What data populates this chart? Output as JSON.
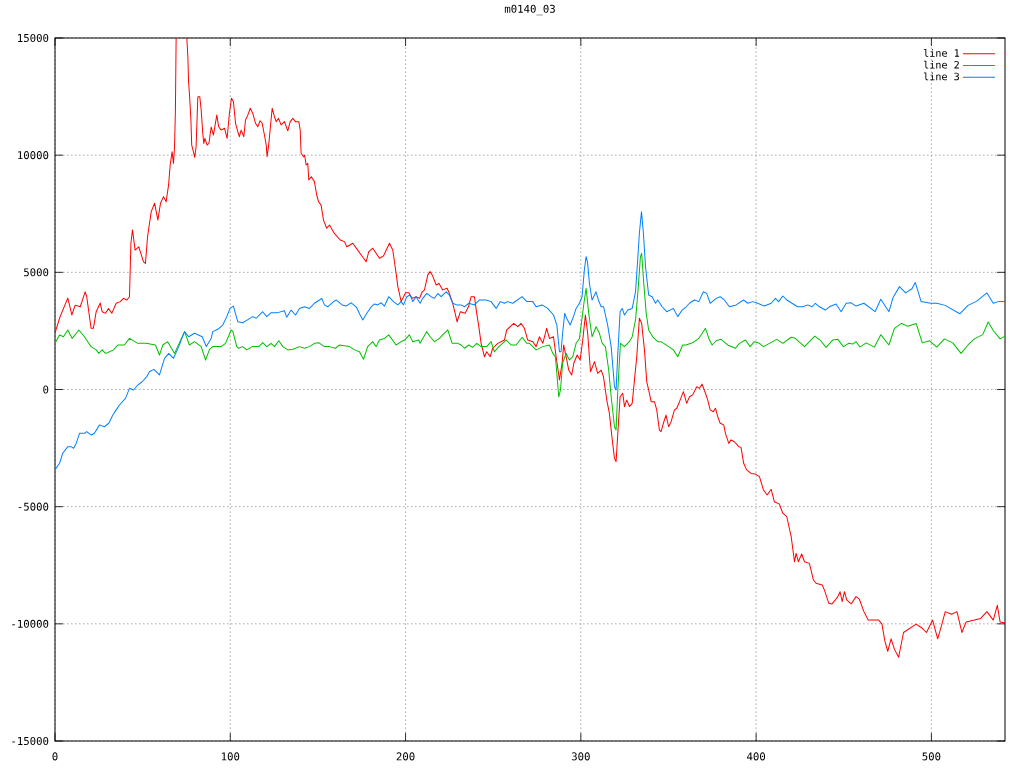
{
  "chart_data": {
    "type": "line",
    "title": "m0140_03",
    "xlim": [
      0,
      542
    ],
    "ylim": [
      -15000,
      15000
    ],
    "xticks": [
      0,
      100,
      200,
      300,
      400,
      500
    ],
    "yticks": [
      -15000,
      -10000,
      -5000,
      0,
      5000,
      10000,
      15000
    ],
    "grid": true,
    "legend": "top right",
    "series": [
      {
        "name": "line 1",
        "color": "#ff0000",
        "x": [
          0,
          2.6,
          7.3,
          9.6,
          11.5,
          14.4,
          17.2,
          18.1,
          20.6,
          21.9,
          23.5,
          25.8,
          26.9,
          28.8,
          30.5,
          32.4,
          34.9,
          37.2,
          39.1,
          41,
          42.5,
          43.3,
          44.2,
          45.7,
          47.8,
          50.5,
          51.6,
          52.8,
          54.9,
          56.8,
          58.7,
          60.2,
          61.9,
          63.4,
          64.8,
          65.7,
          66.8,
          67.6,
          68.2,
          68.7,
          69.1,
          72,
          75.2,
          75.8,
          76.2,
          76.8,
          77.5,
          78,
          79.2,
          79.7,
          80.5,
          81.5,
          82.6,
          83.4,
          84.3,
          84.9,
          85.5,
          86.8,
          87.8,
          89.1,
          90.4,
          92.3,
          93.4,
          94.8,
          96.7,
          98.2,
          99.5,
          100.7,
          101.8,
          103,
          104.3,
          105.2,
          106.2,
          107.7,
          108.7,
          110,
          111.4,
          112.8,
          114.4,
          115.7,
          117,
          118.2,
          119.5,
          120.5,
          121,
          121.9,
          122.9,
          123.9,
          125.2,
          126.2,
          127.5,
          129,
          130.9,
          132.8,
          134.2,
          135.7,
          137.2,
          139.1,
          139.9,
          140.4,
          141.8,
          142.4,
          143.3,
          144.2,
          144.8,
          146.2,
          148,
          149.3,
          150.4,
          151.8,
          153.2,
          155,
          156.6,
          159.4,
          162.7,
          165.1,
          166.5,
          169.9,
          172.4,
          174.7,
          177.5,
          179,
          181.3,
          185.1,
          187.4,
          190.8,
          192.7,
          194.6,
          195.6,
          197.5,
          200,
          201.8,
          203.8,
          206,
          208,
          209.5,
          210.8,
          212.7,
          214,
          215.2,
          217.5,
          219,
          221.2,
          223.7,
          225,
          226.9,
          228.3,
          229.4,
          231.3,
          234,
          235.9,
          237.4,
          239.3,
          240.6,
          241.8,
          243.1,
          245,
          246.3,
          248.3,
          249.7,
          252.6,
          256.4,
          257.7,
          261.7,
          264,
          265.9,
          267.8,
          269.7,
          272.6,
          274.5,
          276.4,
          278.3,
          280.5,
          282.1,
          284.4,
          285.9,
          287.8,
          289.3,
          290.2,
          291.6,
          293.1,
          294.8,
          296,
          297.9,
          299.6,
          301.1,
          302.6,
          303.9,
          305.5,
          307.8,
          309.6,
          311.6,
          312.9,
          314.8,
          316.3,
          317.5,
          319.2,
          320.1,
          321.1,
          322.4,
          323.9,
          324.9,
          326.2,
          327.7,
          329.3,
          330.6,
          331.9,
          333.4,
          334.7,
          336.3,
          337.6,
          338.7,
          340.1,
          342,
          343.3,
          344.8,
          345.8,
          347.1,
          348.6,
          350.1,
          351.5,
          353.4,
          354.7,
          356.3,
          358.5,
          360.4,
          362,
          363.8,
          366.1,
          367.7,
          369.2,
          371.1,
          372.4,
          373.8,
          375.6,
          376.8,
          378.1,
          379.5,
          381.5,
          382.5,
          384.4,
          385.7,
          387.6,
          390.1,
          391.4,
          392.9,
          394.6,
          397.1,
          399.6,
          401.9,
          404.2,
          406.3,
          408.6,
          410.4,
          413.3,
          415.2,
          417.5,
          420,
          421.9,
          422.8,
          424.1,
          426,
          427.6,
          430.4,
          432.7,
          434.2,
          437.7,
          439,
          441.4,
          443.3,
          445.2,
          446.6,
          447.9,
          449.1,
          450.4,
          451.7,
          454.2,
          457,
          458.9,
          461.5,
          463.9,
          469.9,
          471.8,
          473.4,
          475.1,
          477,
          478.9,
          481.3,
          484.1,
          487.7,
          491.3,
          494.8,
          497.2,
          500.7,
          503.6,
          506,
          507.9,
          511.5,
          514.6,
          517.4,
          519.8,
          524.5,
          528.1,
          531.7,
          535.3,
          537.6,
          539.2,
          542
        ],
        "values": [
          2410,
          3050,
          3900,
          3180,
          3600,
          3530,
          4170,
          3960,
          2610,
          2610,
          3320,
          3690,
          3320,
          3250,
          3460,
          3250,
          3680,
          3750,
          3890,
          3820,
          3960,
          6240,
          6810,
          5950,
          6090,
          5450,
          5380,
          6520,
          7590,
          7950,
          7230,
          7950,
          8230,
          8010,
          8730,
          9580,
          10150,
          9650,
          10360,
          11930,
          15000,
          null,
          15000,
          14200,
          13130,
          12490,
          11570,
          10430,
          10080,
          9910,
          10360,
          12490,
          12490,
          11930,
          10930,
          10500,
          10720,
          10430,
          10500,
          11200,
          10860,
          11710,
          11210,
          11070,
          11150,
          10720,
          11790,
          12430,
          12280,
          11360,
          11000,
          10790,
          11070,
          10790,
          11500,
          11710,
          12000,
          11790,
          11360,
          11210,
          11470,
          11360,
          10860,
          10430,
          9930,
          10430,
          11210,
          12000,
          11640,
          11430,
          11570,
          11290,
          11430,
          11040,
          11430,
          11570,
          11430,
          11430,
          11070,
          10080,
          9930,
          10000,
          9580,
          9650,
          8940,
          9080,
          8870,
          8300,
          8010,
          7870,
          7230,
          6880,
          7020,
          6660,
          6380,
          6310,
          6090,
          6240,
          5980,
          5740,
          5450,
          5880,
          6030,
          5600,
          5700,
          6240,
          5950,
          4960,
          4390,
          3750,
          4130,
          4130,
          3890,
          3960,
          3890,
          4170,
          4250,
          4890,
          5030,
          4890,
          4460,
          4530,
          4250,
          4320,
          4100,
          3680,
          3250,
          2890,
          3320,
          3250,
          3530,
          3960,
          3960,
          3250,
          2680,
          1970,
          1400,
          1610,
          1400,
          1760,
          1970,
          2110,
          2540,
          2820,
          2680,
          2820,
          2610,
          2110,
          2040,
          1830,
          2250,
          1970,
          2610,
          2180,
          2250,
          1400,
          410,
          1120,
          1900,
          1400,
          830,
          620,
          1120,
          1470,
          1260,
          2110,
          3180,
          2400,
          760,
          1190,
          690,
          830,
          550,
          -450,
          -1020,
          -1870,
          -2940,
          -3080,
          -1870,
          -310,
          -160,
          -730,
          -450,
          -730,
          -590,
          410,
          1400,
          3040,
          2820,
          1690,
          330,
          -20,
          -520,
          -520,
          -870,
          -1730,
          -1800,
          -1440,
          -1090,
          -1590,
          -1370,
          -870,
          -800,
          -520,
          -90,
          -590,
          -310,
          -230,
          120,
          50,
          230,
          -160,
          -450,
          -870,
          -950,
          -800,
          -1160,
          -1440,
          -1510,
          -1870,
          -2300,
          -2150,
          -2230,
          -2440,
          -2470,
          -3150,
          -3430,
          -3580,
          -3610,
          -3720,
          -4290,
          -4500,
          -4260,
          -4790,
          -4890,
          -5280,
          -5430,
          -6280,
          -7350,
          -6990,
          -7350,
          -7020,
          -7350,
          -7420,
          -8130,
          -8270,
          -8340,
          -8560,
          -9120,
          -9150,
          -8980,
          -8840,
          -8630,
          -9050,
          -8630,
          -8980,
          -9150,
          -8840,
          -8950,
          -9480,
          -9840,
          -9840,
          -10010,
          -10720,
          -11170,
          -10640,
          -11080,
          -11430,
          -10370,
          -10190,
          -10010,
          -10190,
          -10370,
          -9840,
          -10640,
          -10010,
          -9480,
          -9590,
          -9480,
          -10370,
          -9920,
          -9840,
          -9770,
          -9480,
          -9840,
          -9210,
          -9920,
          -9960
        ]
      },
      {
        "name": "line 2",
        "color": "#00c000",
        "x": [
          0,
          2.6,
          4.8,
          7.3,
          9.8,
          13.6,
          16.8,
          18.7,
          20.6,
          23.5,
          25,
          26.9,
          28.8,
          31.1,
          33.4,
          35.8,
          39.6,
          42.5,
          47.2,
          52,
          57.3,
          59.6,
          61.5,
          64.3,
          68.2,
          73.9,
          76.7,
          79.6,
          83.4,
          85.9,
          88.1,
          90,
          94.8,
          97.3,
          100.5,
          101.5,
          103.7,
          104.8,
          107.1,
          109.4,
          112.5,
          116.3,
          118.5,
          120.8,
          123.3,
          125.2,
          127.7,
          130,
          132.8,
          135.7,
          139.5,
          142.3,
          145.2,
          148,
          150.4,
          153.7,
          156.6,
          160,
          162.3,
          168,
          170.9,
          173.7,
          176,
          178.4,
          181.3,
          183.2,
          185.1,
          188,
          190.4,
          194.6,
          197.5,
          199.4,
          202.2,
          204.1,
          207.5,
          208.3,
          212.1,
          214,
          216.5,
          219.3,
          221.2,
          224.1,
          226.6,
          229.8,
          231.7,
          233.6,
          236.1,
          238.3,
          240.6,
          243.1,
          246.3,
          248.8,
          250.7,
          253.2,
          257.4,
          260.2,
          263.1,
          266.5,
          269.2,
          270.7,
          274.5,
          278.3,
          282.1,
          284,
          285.5,
          287.4,
          288.4,
          289.6,
          291.6,
          293.5,
          295.4,
          297.3,
          299.2,
          302,
          303,
          304.5,
          306.4,
          308.7,
          310.6,
          312.2,
          314,
          315.9,
          317.3,
          319.2,
          320.1,
          321.1,
          322.6,
          324.9,
          327.7,
          329.3,
          331.2,
          332.5,
          334,
          334.7,
          335.9,
          337.3,
          338.7,
          341,
          343.9,
          345.8,
          350.1,
          352.8,
          355.3,
          358.1,
          360,
          362.9,
          364.8,
          367.3,
          371.1,
          373.4,
          374.9,
          377.2,
          380,
          383.8,
          388.2,
          390.5,
          393.9,
          396.6,
          399,
          401.9,
          404.2,
          407.6,
          411.8,
          415.2,
          420,
          422,
          427.6,
          433.5,
          436.5,
          439.9,
          443.7,
          446.6,
          449.8,
          452.8,
          455.1,
          457,
          459.2,
          462.8,
          467.5,
          471.1,
          475.8,
          478.9,
          482.9,
          486.5,
          491.3,
          494.8,
          498.9,
          503.1,
          507.4,
          512.2,
          516.9,
          520.9,
          524.5,
          529.3,
          532.4,
          535.3,
          539.2,
          542
        ],
        "values": [
          1970,
          2330,
          2250,
          2540,
          2180,
          2540,
          2250,
          2040,
          1830,
          1690,
          1540,
          1690,
          1540,
          1610,
          1690,
          1900,
          1900,
          2180,
          1970,
          1970,
          1900,
          1470,
          1900,
          2040,
          1540,
          2470,
          1900,
          2040,
          1830,
          1260,
          1700,
          1830,
          1830,
          1970,
          2540,
          2470,
          1830,
          1760,
          1830,
          1690,
          1830,
          1830,
          2000,
          1830,
          1970,
          1830,
          2080,
          1830,
          1690,
          1720,
          1830,
          1760,
          1830,
          1970,
          2000,
          1830,
          1830,
          1760,
          1900,
          1830,
          1690,
          1610,
          1290,
          1830,
          2040,
          1830,
          2110,
          2180,
          2330,
          1900,
          2040,
          2110,
          2330,
          2040,
          2110,
          1970,
          2470,
          2250,
          2040,
          2180,
          2330,
          2540,
          1970,
          1970,
          1900,
          1760,
          1900,
          1800,
          1970,
          1830,
          1830,
          2040,
          1610,
          1830,
          2110,
          1900,
          1900,
          2230,
          1970,
          1970,
          1690,
          1830,
          1900,
          1540,
          1400,
          -310,
          -20,
          1120,
          1540,
          1260,
          1400,
          1970,
          2180,
          3820,
          4320,
          3250,
          2250,
          2680,
          2400,
          1970,
          1830,
          830,
          -310,
          -1590,
          -1730,
          -20,
          1970,
          1830,
          2040,
          2250,
          2970,
          4100,
          5670,
          5810,
          4530,
          3250,
          2540,
          2250,
          2040,
          2040,
          1830,
          1690,
          1400,
          1900,
          1900,
          1970,
          2040,
          2180,
          2610,
          2110,
          1900,
          2080,
          2140,
          1900,
          1760,
          1970,
          2110,
          1830,
          2040,
          1970,
          1830,
          1970,
          2140,
          1970,
          2230,
          2200,
          1830,
          2280,
          2110,
          1800,
          2110,
          2140,
          1830,
          1970,
          1940,
          2040,
          1810,
          1990,
          1810,
          2340,
          1900,
          2610,
          2820,
          2700,
          2820,
          1990,
          2080,
          1810,
          2160,
          1990,
          1540,
          1900,
          2160,
          2340,
          2880,
          2520,
          2160,
          2280
        ]
      },
      {
        "name": "line 3",
        "color": "#0080ff",
        "x": [
          0,
          2.6,
          4.4,
          7.3,
          9.2,
          10.6,
          12.1,
          14,
          16.8,
          18.1,
          20.6,
          22.5,
          25.4,
          28.2,
          30.7,
          33,
          34.9,
          36.8,
          40.2,
          42.5,
          44.8,
          47.2,
          49.7,
          52.4,
          53.9,
          56.4,
          59.6,
          62.5,
          64.9,
          67.6,
          70.6,
          73.9,
          76.3,
          79.6,
          84,
          86.3,
          89.1,
          90,
          92.9,
          95.7,
          98,
          99.9,
          101.8,
          104.3,
          107.1,
          109.1,
          112.8,
          114.8,
          118.5,
          120.8,
          123.3,
          127.1,
          130.9,
          132.2,
          134.7,
          137.2,
          139.5,
          142.3,
          145.2,
          148,
          150.9,
          152.2,
          153.7,
          155.6,
          158.9,
          160.4,
          163.8,
          166.1,
          169,
          171.8,
          174.1,
          175.6,
          177.9,
          180.4,
          182.3,
          184.1,
          186.1,
          188,
          190.4,
          193.1,
          195.6,
          197.5,
          198.8,
          200.7,
          202.6,
          204.1,
          206,
          208.3,
          209.8,
          212.1,
          214.6,
          216.5,
          218.4,
          220.3,
          223.2,
          225,
          226.9,
          229.2,
          231.7,
          233.6,
          236.1,
          239.3,
          242.2,
          246,
          248.8,
          251.7,
          254,
          256.4,
          258.3,
          261.2,
          266.5,
          269.2,
          272.6,
          274.5,
          277.9,
          281.1,
          284.4,
          286.3,
          287.8,
          288.7,
          289.6,
          290.8,
          291.9,
          293.9,
          295.8,
          297.3,
          299.2,
          300.7,
          302,
          303,
          303.8,
          304.9,
          306.4,
          308.7,
          310,
          311.6,
          313,
          315.3,
          317.3,
          319.2,
          320.1,
          321.1,
          322.4,
          323.6,
          324.9,
          326.8,
          329.3,
          331.2,
          332.5,
          333.4,
          334.6,
          335.7,
          336.9,
          338.7,
          340.7,
          342.6,
          343.9,
          346.4,
          349,
          352.8,
          355.3,
          357.8,
          360.1,
          362,
          364.8,
          367.3,
          369.9,
          371.8,
          373.8,
          377.2,
          379.5,
          381.9,
          384.8,
          388.6,
          392.8,
          395.2,
          398.1,
          400.9,
          404.7,
          408.6,
          411,
          412.9,
          415.2,
          417.5,
          420,
          423.7,
          426.6,
          429.4,
          431.9,
          433.8,
          436.1,
          439.5,
          441.8,
          445.6,
          448.5,
          451.4,
          454.2,
          457,
          461.5,
          467.9,
          471.1,
          475.8,
          478.2,
          481.8,
          485.3,
          488.9,
          490.8,
          494.1,
          499.6,
          503.1,
          507.9,
          516.2,
          520.9,
          525.7,
          531.7,
          535.3,
          538.8,
          542
        ],
        "values": [
          -3430,
          -3150,
          -2720,
          -2440,
          -2440,
          -2510,
          -2300,
          -1870,
          -1870,
          -1800,
          -1940,
          -1870,
          -1510,
          -1590,
          -1440,
          -1090,
          -870,
          -660,
          -380,
          50,
          -20,
          190,
          330,
          550,
          760,
          860,
          620,
          1330,
          1540,
          1330,
          1830,
          2470,
          2250,
          2400,
          2250,
          1830,
          2180,
          2470,
          2570,
          2750,
          3110,
          3460,
          3560,
          2890,
          2850,
          2940,
          3110,
          3040,
          3320,
          3110,
          3280,
          3280,
          3360,
          3080,
          3390,
          3180,
          3460,
          3530,
          3460,
          3680,
          3820,
          3890,
          3610,
          3530,
          3750,
          3820,
          3610,
          3560,
          3700,
          3530,
          3180,
          2970,
          3250,
          3530,
          3650,
          3610,
          3700,
          3560,
          3960,
          3750,
          3610,
          3750,
          3610,
          3960,
          4030,
          3750,
          3960,
          3680,
          3890,
          4100,
          3960,
          3890,
          4100,
          3960,
          4170,
          4030,
          3680,
          3610,
          3610,
          3530,
          3680,
          3610,
          3820,
          3820,
          3750,
          3460,
          3750,
          3680,
          3750,
          3680,
          3960,
          3750,
          3750,
          3530,
          3610,
          3460,
          3180,
          2750,
          1610,
          1610,
          2400,
          3250,
          3040,
          2750,
          3110,
          3460,
          3680,
          3960,
          5100,
          5670,
          5450,
          4530,
          3820,
          4170,
          3820,
          3530,
          3530,
          2750,
          1830,
          120,
          -20,
          1540,
          3320,
          3460,
          3180,
          3390,
          3460,
          4170,
          5600,
          6670,
          7590,
          6670,
          5240,
          4030,
          3960,
          3680,
          3820,
          3530,
          3320,
          3460,
          3110,
          3390,
          3530,
          3680,
          3820,
          3750,
          4170,
          4100,
          3680,
          3890,
          3960,
          3820,
          3530,
          3610,
          3820,
          3680,
          3750,
          3680,
          3560,
          3680,
          3890,
          3750,
          3990,
          3820,
          3700,
          3530,
          3530,
          3610,
          3530,
          3680,
          3530,
          3390,
          3530,
          3650,
          3320,
          3680,
          3700,
          3560,
          3680,
          3320,
          3850,
          3320,
          3940,
          4390,
          4120,
          4300,
          4570,
          3760,
          3680,
          3680,
          3590,
          3230,
          3590,
          3760,
          4120,
          3680,
          3760,
          3760
        ]
      }
    ]
  }
}
